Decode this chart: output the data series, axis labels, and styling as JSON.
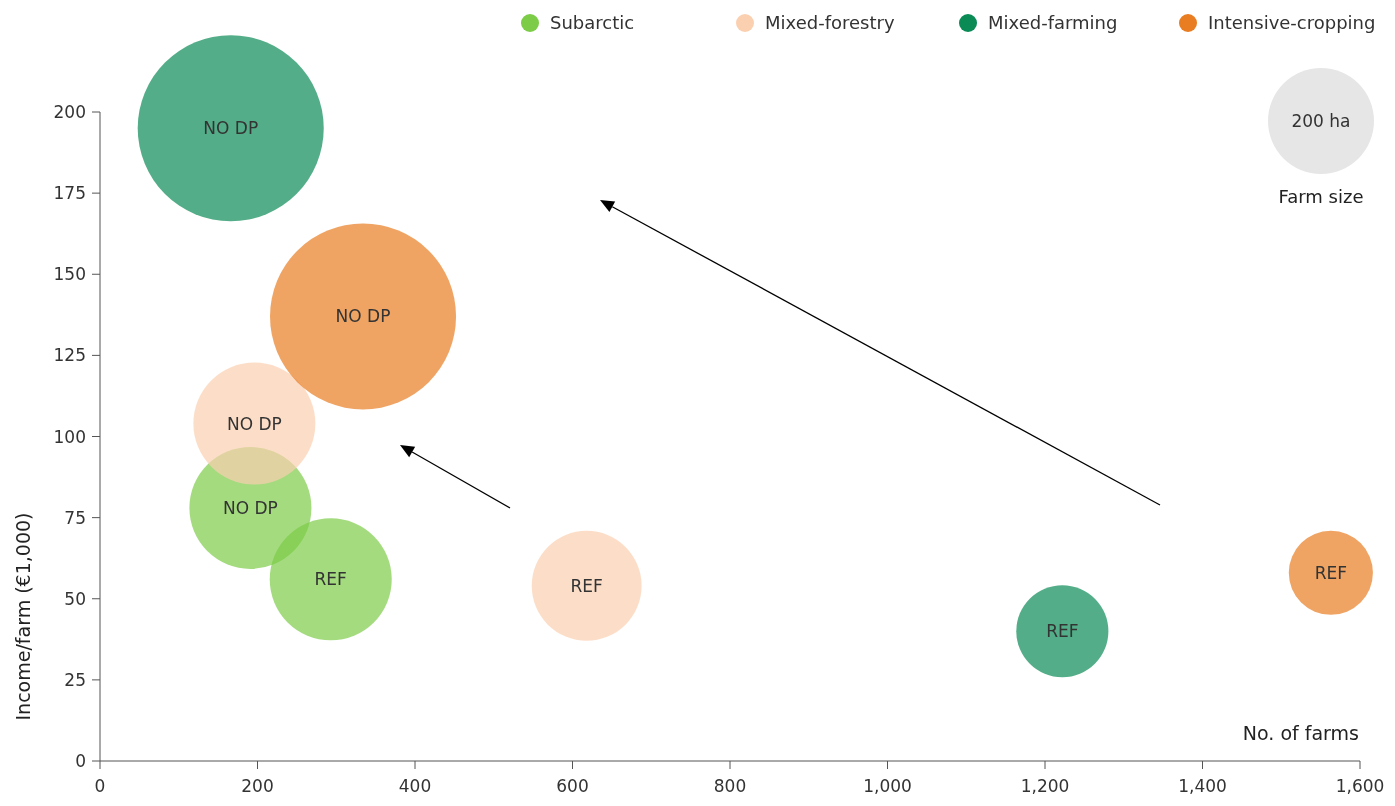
{
  "chart_data": {
    "type": "bubble",
    "xlabel": "No. of farms",
    "ylabel": "Income/farm (€1,000)",
    "xlim": [
      0,
      1600
    ],
    "ylim": [
      0,
      200
    ],
    "xticks": [
      0,
      200,
      400,
      600,
      800,
      {
        "value": 1000,
        "label": "1,000"
      },
      {
        "value": 1200,
        "label": "1,200"
      },
      {
        "value": 1400,
        "label": "1,400"
      },
      {
        "value": 1600,
        "label": "1,600"
      }
    ],
    "yticks": [
      0,
      25,
      50,
      75,
      100,
      125,
      150,
      175,
      200
    ],
    "legend": "top right",
    "grid": false,
    "size_legend": [
      {
        "value": 200,
        "label": "200 ha"
      }
    ],
    "annotations": [
      "Farm size"
    ],
    "series": [
      {
        "name": "Subarctic",
        "color": "#7ccc47",
        "x": [
          191,
          293
        ],
        "values": [
          78,
          56
        ],
        "sizes": [
          265,
          265
        ],
        "value_labels": [
          "NO DP",
          "REF"
        ]
      },
      {
        "name": "Mixed-forestry",
        "color": "#fbd0b0",
        "x": [
          196,
          618
        ],
        "values": [
          104,
          54
        ],
        "sizes": [
          265,
          215
        ],
        "value_labels": [
          "NO DP",
          "REF"
        ]
      },
      {
        "name": "Mixed-farming",
        "color": "#0a8a55",
        "x": [
          166,
          1222
        ],
        "values": [
          195,
          40
        ],
        "sizes": [
          616,
          151
        ],
        "value_labels": [
          "NO DP",
          "REF"
        ]
      },
      {
        "name": "Intensive-cropping",
        "color": "#e87d22",
        "x": [
          334,
          1563
        ],
        "values": [
          137,
          58
        ],
        "sizes": [
          616,
          126
        ],
        "value_labels": [
          "NO DP",
          "REF"
        ]
      }
    ]
  }
}
